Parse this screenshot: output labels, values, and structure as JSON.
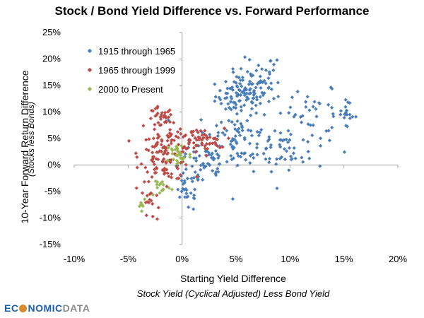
{
  "logo": {
    "part1": "EC",
    "part2": "NOMIC",
    "part3": "DATA"
  },
  "colors": {
    "s1": "#4a7ebb",
    "s2": "#be4b48",
    "s3": "#98b954",
    "axis": "#a0a0a0"
  },
  "chart_data": {
    "type": "scatter",
    "title": "Stock / Bond Yield Difference vs. Forward Performance",
    "xlabel": "Starting Yield Difference",
    "xlabel_sub": "Stock Yield  (Cyclical Adjusted) Less Bond Yield",
    "ylabel": "10-Year Forward Return Difference",
    "ylabel_sub": "(Stocks less Bonds)",
    "xlim": [
      -0.1,
      0.2
    ],
    "ylim": [
      -0.15,
      0.25
    ],
    "xticks": [
      "-10%",
      "-5%",
      "0%",
      "5%",
      "10%",
      "15%",
      "20%"
    ],
    "yticks": [
      "25%",
      "20%",
      "15%",
      "10%",
      "5%",
      "0%",
      "-5%",
      "-10%",
      "-15%"
    ],
    "legend_position": "top-left",
    "grid": false,
    "series": [
      {
        "name": "1915 through 1965",
        "clusters": [
          {
            "cx": 0.055,
            "cy": 0.13,
            "sx": 0.012,
            "sy": 0.018,
            "n": 90
          },
          {
            "cx": 0.07,
            "cy": 0.16,
            "sx": 0.01,
            "sy": 0.02,
            "n": 40
          },
          {
            "cx": 0.05,
            "cy": 0.05,
            "sx": 0.018,
            "sy": 0.03,
            "n": 80
          },
          {
            "cx": 0.095,
            "cy": 0.03,
            "sx": 0.02,
            "sy": 0.02,
            "n": 50
          },
          {
            "cx": 0.12,
            "cy": 0.1,
            "sx": 0.02,
            "sy": 0.02,
            "n": 40
          },
          {
            "cx": 0.15,
            "cy": 0.095,
            "sx": 0.006,
            "sy": 0.012,
            "n": 14
          },
          {
            "cx": 0.02,
            "cy": 0.0,
            "sx": 0.012,
            "sy": 0.025,
            "n": 50
          },
          {
            "cx": 0.005,
            "cy": -0.05,
            "sx": 0.006,
            "sy": 0.02,
            "n": 25
          }
        ],
        "points": [
          [
            0.088,
            0.198
          ],
          [
            0.082,
            0.196
          ],
          [
            0.158,
            0.091
          ],
          [
            0.088,
            -0.044
          ],
          [
            0.082,
            0.197
          ]
        ]
      },
      {
        "name": "1965 through 1999",
        "clusters": [
          {
            "cx": -0.02,
            "cy": 0.085,
            "sx": 0.006,
            "sy": 0.012,
            "n": 30
          },
          {
            "cx": -0.015,
            "cy": 0.02,
            "sx": 0.012,
            "sy": 0.025,
            "n": 120
          },
          {
            "cx": 0.015,
            "cy": 0.045,
            "sx": 0.012,
            "sy": 0.012,
            "n": 60
          },
          {
            "cx": -0.03,
            "cy": -0.07,
            "sx": 0.004,
            "sy": 0.015,
            "n": 12
          }
        ],
        "points": [
          [
            -0.027,
            0.102
          ],
          [
            -0.033,
            -0.095
          ],
          [
            -0.023,
            -0.102
          ]
        ]
      },
      {
        "name": "2000 to Present",
        "clusters": [
          {
            "cx": -0.003,
            "cy": 0.02,
            "sx": 0.006,
            "sy": 0.012,
            "n": 30
          },
          {
            "cx": -0.02,
            "cy": -0.04,
            "sx": 0.005,
            "sy": 0.01,
            "n": 14
          },
          {
            "cx": -0.037,
            "cy": -0.07,
            "sx": 0.002,
            "sy": 0.006,
            "n": 6
          }
        ],
        "points": [
          [
            -0.037,
            -0.075
          ],
          [
            -0.02,
            -0.035
          ]
        ]
      }
    ]
  }
}
